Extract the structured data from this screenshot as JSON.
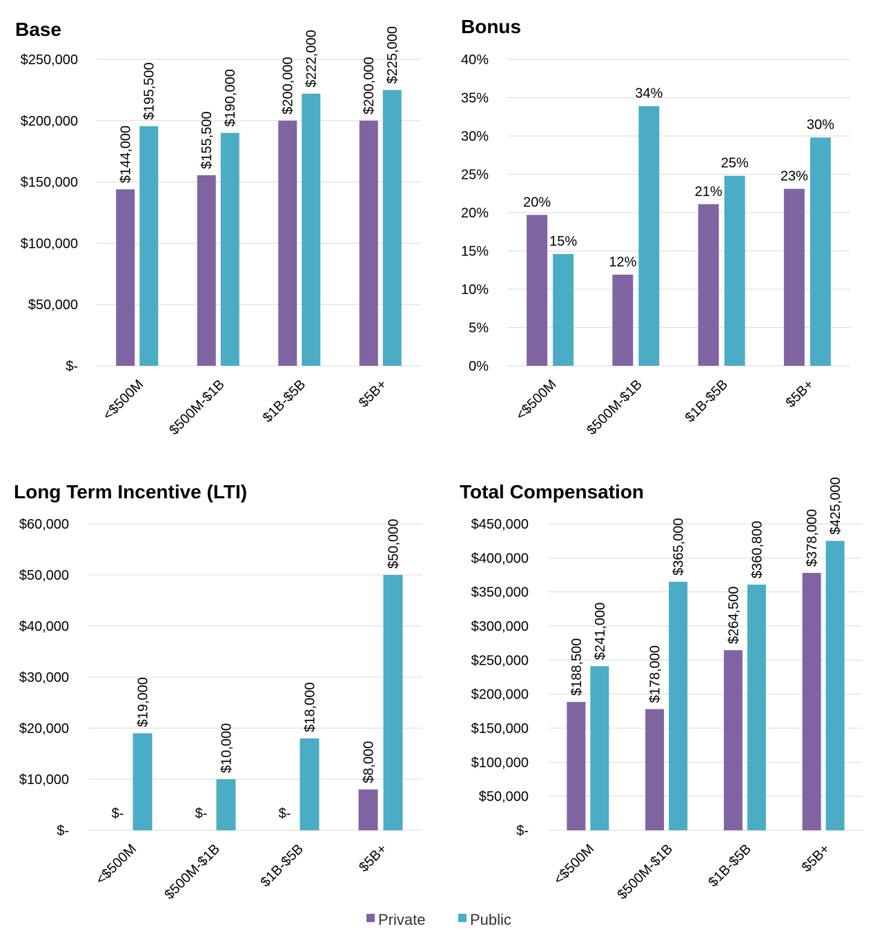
{
  "legend": {
    "private_label": "Private",
    "public_label": "Public"
  },
  "colors": {
    "private": "#8064a2",
    "public": "#4bacc6",
    "grid": "#d9d9d9"
  },
  "chart_data": [
    {
      "type": "bar",
      "title": "Base",
      "categories": [
        "<$500M",
        "$500M-$1B",
        "$1B-$5B",
        "$5B+"
      ],
      "series": [
        {
          "name": "Private",
          "values": [
            144000,
            155500,
            200000,
            200000
          ],
          "labels": [
            "$144,000",
            "$155,500",
            "$200,000",
            "$200,000"
          ]
        },
        {
          "name": "Public",
          "values": [
            195500,
            190000,
            222000,
            225000
          ],
          "labels": [
            "$195,500",
            "$190,000",
            "$222,000",
            "$225,000"
          ]
        }
      ],
      "ylim": [
        0,
        250000
      ],
      "yticks": [
        "$-",
        "$50,000",
        "$100,000",
        "$150,000",
        "$200,000",
        "$250,000"
      ],
      "label_orientation": "vertical"
    },
    {
      "type": "bar",
      "title": "Bonus",
      "categories": [
        "<$500M",
        "$500M-$1B",
        "$1B-$5B",
        "$5B+"
      ],
      "series": [
        {
          "name": "Private",
          "values": [
            19.7,
            11.9,
            21.1,
            23.1
          ],
          "labels": [
            "20%",
            "12%",
            "21%",
            "23%"
          ]
        },
        {
          "name": "Public",
          "values": [
            14.6,
            33.9,
            24.8,
            29.8
          ],
          "labels": [
            "15%",
            "34%",
            "25%",
            "30%"
          ]
        }
      ],
      "ylim": [
        0,
        40
      ],
      "yticks": [
        "0%",
        "5%",
        "10%",
        "15%",
        "20%",
        "25%",
        "30%",
        "35%",
        "40%"
      ],
      "label_orientation": "horizontal"
    },
    {
      "type": "bar",
      "title": "Long Term Incentive (LTI)",
      "categories": [
        "<$500M",
        "$500M-$1B",
        "$1B-$5B",
        "$5B+"
      ],
      "series": [
        {
          "name": "Private",
          "values": [
            0,
            0,
            0,
            8000
          ],
          "labels": [
            "$-",
            "$-",
            "$-",
            "$8,000"
          ]
        },
        {
          "name": "Public",
          "values": [
            19000,
            10000,
            18000,
            50000
          ],
          "labels": [
            "$19,000",
            "$10,000",
            "$18,000",
            "$50,000"
          ]
        }
      ],
      "ylim": [
        0,
        60000
      ],
      "yticks": [
        "$-",
        "$10,000",
        "$20,000",
        "$30,000",
        "$40,000",
        "$50,000",
        "$60,000"
      ],
      "label_orientation": "vertical"
    },
    {
      "type": "bar",
      "title": "Total Compensation",
      "categories": [
        "<$500M",
        "$500M-$1B",
        "$1B-$5B",
        "$5B+"
      ],
      "series": [
        {
          "name": "Private",
          "values": [
            188500,
            178000,
            264500,
            378000
          ],
          "labels": [
            "$188,500",
            "$178,000",
            "$264,500",
            "$378,000"
          ]
        },
        {
          "name": "Public",
          "values": [
            241000,
            365000,
            360800,
            425000
          ],
          "labels": [
            "$241,000",
            "$365,000",
            "$360,800",
            "$425,000"
          ]
        }
      ],
      "ylim": [
        0,
        450000
      ],
      "yticks": [
        "$-",
        "$50,000",
        "$100,000",
        "$150,000",
        "$200,000",
        "$250,000",
        "$300,000",
        "$350,000",
        "$400,000",
        "$450,000"
      ],
      "label_orientation": "vertical"
    }
  ]
}
